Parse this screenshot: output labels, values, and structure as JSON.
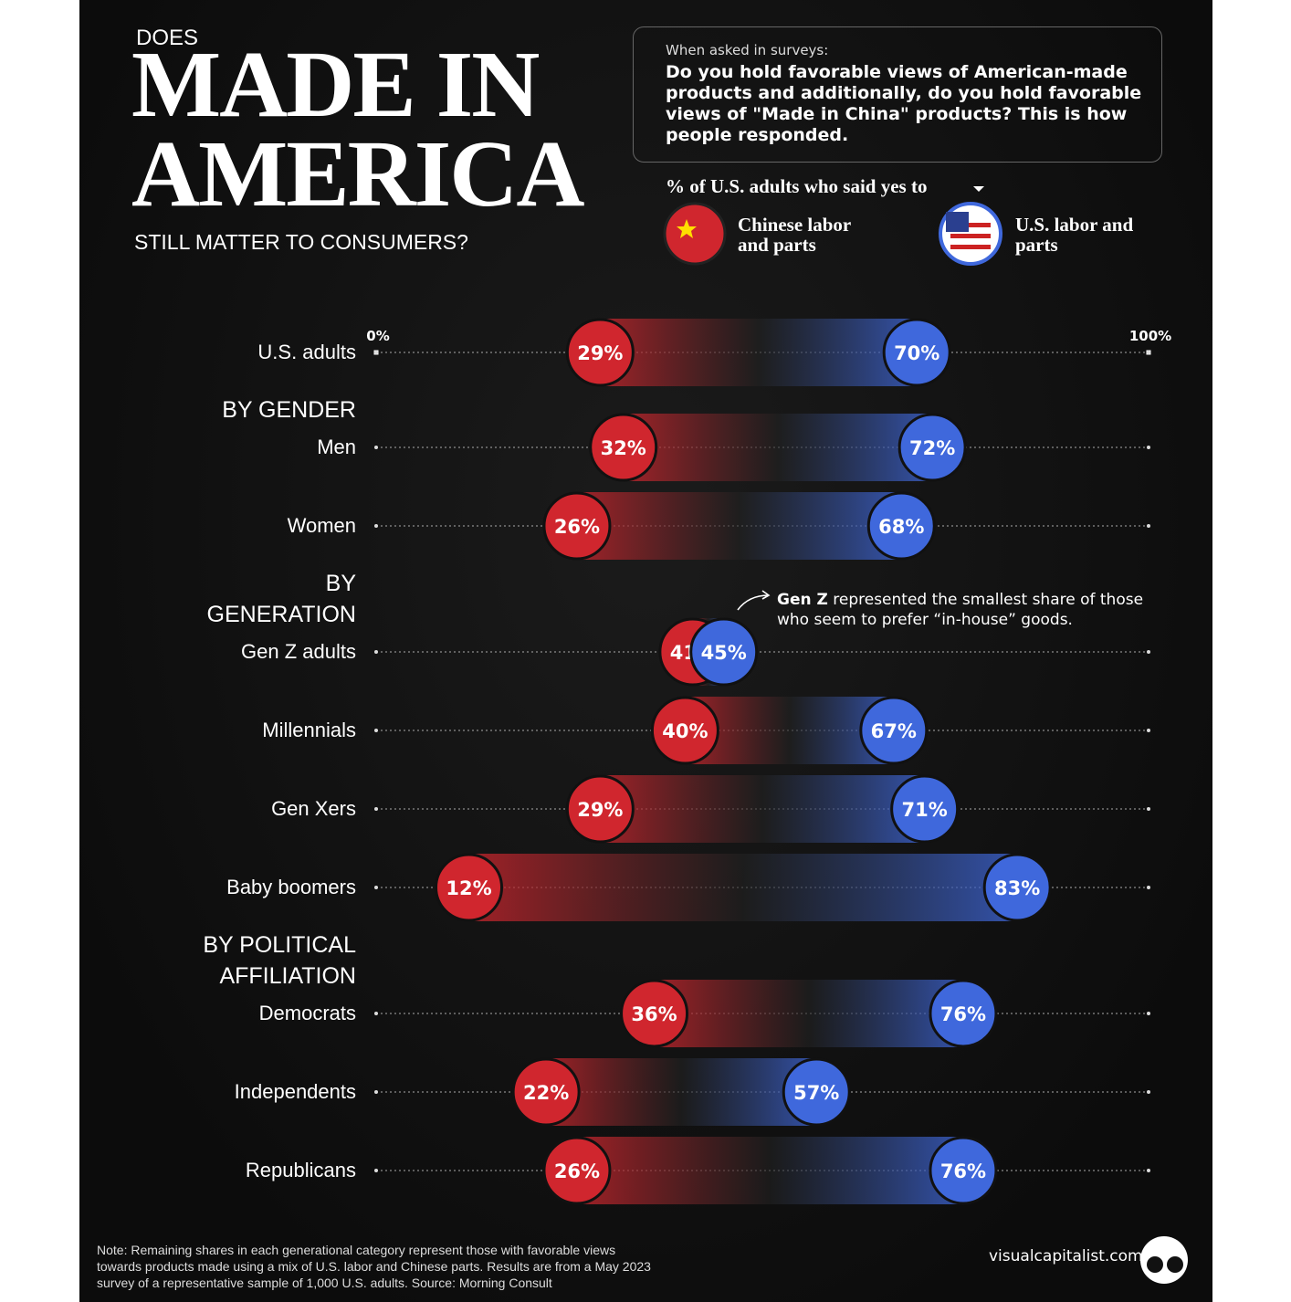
{
  "header": {
    "kicker": "DOES",
    "title": "MADE IN AMERICA",
    "subtitle": "STILL MATTER TO CONSUMERS?"
  },
  "question": {
    "intro": "When asked in surveys:",
    "text": "Do you hold favorable views of American-made products and additionally, do you hold favorable views of \"Made in China\" products? This is how people responded."
  },
  "chart_data": {
    "type": "dumbbell",
    "legend_title": "% of U.S. adults who said yes to",
    "categories": [
      "U.S. adults",
      "BY GENDER",
      "Men",
      "Women",
      "BY GENERATION",
      "Gen Z adults",
      "Millennials",
      "Gen Xers",
      "Baby boomers",
      "BY POLITICAL AFFILIATION",
      "Democrats",
      "Independents",
      "Republicans"
    ],
    "series": [
      {
        "name": "Chinese labor and parts",
        "color": "#d0262e",
        "values": [
          29,
          null,
          32,
          26,
          null,
          41,
          40,
          29,
          12,
          null,
          36,
          22,
          26
        ],
        "value_labels": [
          "29%",
          null,
          "32%",
          "26%",
          null,
          "41%",
          "40%",
          "29%",
          "12%",
          null,
          "36%",
          "22%",
          "26%"
        ]
      },
      {
        "name": "U.S. labor and parts",
        "color": "#3f68dc",
        "values": [
          70,
          null,
          72,
          68,
          null,
          45,
          67,
          71,
          83,
          null,
          76,
          57,
          76
        ],
        "value_labels": [
          "70%",
          null,
          "72%",
          "68%",
          null,
          "45%",
          "67%",
          "71%",
          "83%",
          null,
          "76%",
          "57%",
          "76%"
        ]
      }
    ],
    "xlim": [
      0,
      100
    ],
    "xticks": [
      {
        "value": 0,
        "label": "0%"
      },
      {
        "value": 100,
        "label": "100%"
      }
    ],
    "annotation": {
      "bold": "Gen Z",
      "text": " represented the smallest share of those who seem to prefer “in-house” goods."
    }
  },
  "footer": {
    "note": "Note: Remaining shares in each generational category represent those with favorable views towards products made using a mix of U.S. labor and Chinese parts. Results are from a May 2023 survey of a representative sample of 1,000 U.S. adults. Source: Morning Consult",
    "brand": "visualcapitalist.com"
  }
}
